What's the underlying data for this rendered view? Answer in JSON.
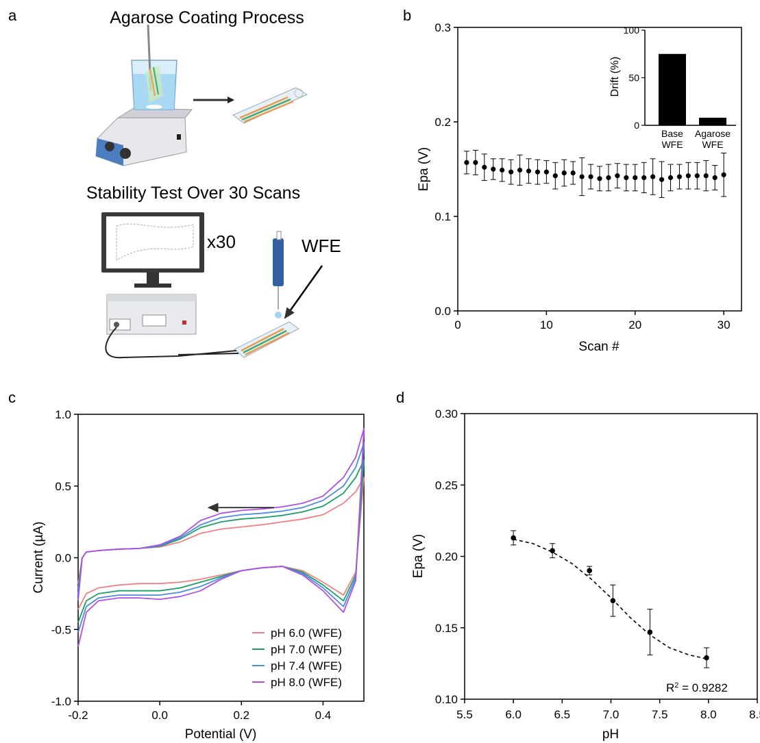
{
  "panels": {
    "a": "a",
    "b": "b",
    "c": "c",
    "d": "d"
  },
  "illustration": {
    "title_top": "Agarose Coating Process",
    "title_bottom": "Stability Test Over 30 Scans",
    "repeat_label": "x30",
    "electrode_label": "WFE"
  },
  "chart_data": [
    {
      "panel": "b",
      "type": "scatter",
      "title": "",
      "xlabel": "Scan #",
      "ylabel": "Epa (V)",
      "xlim": [
        0,
        32
      ],
      "ylim": [
        0.0,
        0.3
      ],
      "xticks": [
        0,
        10,
        20,
        30
      ],
      "yticks": [
        0.0,
        0.1,
        0.2,
        0.3
      ],
      "x": [
        1,
        2,
        3,
        4,
        5,
        6,
        7,
        8,
        9,
        10,
        11,
        12,
        13,
        14,
        15,
        16,
        17,
        18,
        19,
        20,
        21,
        22,
        23,
        24,
        25,
        26,
        27,
        28,
        29,
        30
      ],
      "y": [
        0.157,
        0.157,
        0.152,
        0.15,
        0.149,
        0.147,
        0.149,
        0.148,
        0.147,
        0.147,
        0.143,
        0.146,
        0.146,
        0.142,
        0.142,
        0.14,
        0.141,
        0.143,
        0.141,
        0.141,
        0.141,
        0.142,
        0.139,
        0.141,
        0.142,
        0.143,
        0.143,
        0.143,
        0.141,
        0.144
      ],
      "yerr": [
        0.012,
        0.013,
        0.014,
        0.011,
        0.012,
        0.013,
        0.016,
        0.013,
        0.013,
        0.012,
        0.014,
        0.014,
        0.012,
        0.02,
        0.013,
        0.013,
        0.014,
        0.013,
        0.014,
        0.014,
        0.016,
        0.019,
        0.019,
        0.014,
        0.013,
        0.014,
        0.014,
        0.016,
        0.013,
        0.023
      ],
      "grid": false,
      "inset": {
        "type": "bar",
        "ylabel": "Drift (%)",
        "ylim": [
          0,
          100
        ],
        "yticks": [
          0,
          50,
          100
        ],
        "categories": [
          [
            "Base",
            "WFE"
          ],
          [
            "Agarose",
            "WFE"
          ]
        ],
        "values": [
          75,
          8
        ]
      }
    },
    {
      "panel": "c",
      "type": "line",
      "title": "",
      "xlabel": "Potential (V)",
      "ylabel": "Current (µA)",
      "xlim": [
        -0.2,
        0.5
      ],
      "ylim": [
        -1.0,
        1.0
      ],
      "xticks": [
        -0.2,
        0.0,
        0.2,
        0.4
      ],
      "yticks": [
        -1.0,
        -0.5,
        0.0,
        0.5,
        1.0
      ],
      "grid": false,
      "legend_position": "bottom-right",
      "series": [
        {
          "name": "pH 6.0 (WFE)",
          "color": "#f08080",
          "forward_x": [
            -0.2,
            -0.19,
            -0.18,
            -0.15,
            -0.1,
            -0.05,
            0,
            0.05,
            0.1,
            0.15,
            0.2,
            0.25,
            0.3,
            0.35,
            0.4,
            0.45,
            0.48,
            0.5
          ],
          "forward_y": [
            -0.18,
            0.0,
            0.04,
            0.05,
            0.06,
            0.065,
            0.075,
            0.11,
            0.17,
            0.2,
            0.215,
            0.23,
            0.25,
            0.27,
            0.3,
            0.38,
            0.46,
            0.56
          ],
          "reverse_x": [
            0.5,
            0.48,
            0.45,
            0.4,
            0.35,
            0.3,
            0.25,
            0.2,
            0.15,
            0.1,
            0.05,
            0,
            -0.05,
            -0.1,
            -0.15,
            -0.18,
            -0.2
          ],
          "reverse_y": [
            0.56,
            -0.1,
            -0.26,
            -0.17,
            -0.09,
            -0.06,
            -0.07,
            -0.09,
            -0.12,
            -0.15,
            -0.17,
            -0.18,
            -0.18,
            -0.19,
            -0.21,
            -0.25,
            -0.36
          ]
        },
        {
          "name": "pH 7.0 (WFE)",
          "color": "#1aa064",
          "forward_x": [
            -0.2,
            -0.19,
            -0.18,
            -0.15,
            -0.1,
            -0.05,
            0,
            0.05,
            0.1,
            0.15,
            0.2,
            0.25,
            0.3,
            0.35,
            0.4,
            0.45,
            0.48,
            0.5
          ],
          "forward_y": [
            -0.22,
            0.0,
            0.04,
            0.05,
            0.06,
            0.065,
            0.08,
            0.13,
            0.21,
            0.25,
            0.27,
            0.28,
            0.295,
            0.32,
            0.36,
            0.45,
            0.56,
            0.68
          ],
          "reverse_x": [
            0.5,
            0.48,
            0.45,
            0.4,
            0.35,
            0.3,
            0.25,
            0.2,
            0.15,
            0.1,
            0.05,
            0,
            -0.05,
            -0.1,
            -0.15,
            -0.18,
            -0.2
          ],
          "reverse_y": [
            0.68,
            -0.12,
            -0.3,
            -0.19,
            -0.1,
            -0.06,
            -0.07,
            -0.09,
            -0.13,
            -0.17,
            -0.21,
            -0.23,
            -0.23,
            -0.23,
            -0.25,
            -0.3,
            -0.45
          ]
        },
        {
          "name": "pH 7.4 (WFE)",
          "color": "#4a8ae8",
          "forward_x": [
            -0.2,
            -0.19,
            -0.18,
            -0.15,
            -0.1,
            -0.05,
            0,
            0.05,
            0.1,
            0.15,
            0.2,
            0.25,
            0.3,
            0.35,
            0.4,
            0.45,
            0.48,
            0.5
          ],
          "forward_y": [
            -0.26,
            0.0,
            0.04,
            0.05,
            0.06,
            0.065,
            0.085,
            0.14,
            0.23,
            0.28,
            0.3,
            0.31,
            0.325,
            0.35,
            0.4,
            0.5,
            0.63,
            0.8
          ],
          "reverse_x": [
            0.5,
            0.48,
            0.45,
            0.4,
            0.35,
            0.3,
            0.25,
            0.2,
            0.15,
            0.1,
            0.05,
            0,
            -0.05,
            -0.1,
            -0.15,
            -0.18,
            -0.2
          ],
          "reverse_y": [
            0.8,
            -0.14,
            -0.34,
            -0.21,
            -0.11,
            -0.06,
            -0.07,
            -0.09,
            -0.14,
            -0.2,
            -0.24,
            -0.26,
            -0.26,
            -0.26,
            -0.28,
            -0.34,
            -0.52
          ]
        },
        {
          "name": "pH 8.0 (WFE)",
          "color": "#b04ee8",
          "forward_x": [
            -0.2,
            -0.19,
            -0.18,
            -0.15,
            -0.1,
            -0.05,
            0,
            0.05,
            0.1,
            0.15,
            0.2,
            0.25,
            0.3,
            0.35,
            0.4,
            0.45,
            0.48,
            0.5
          ],
          "forward_y": [
            -0.3,
            0.0,
            0.04,
            0.05,
            0.06,
            0.065,
            0.09,
            0.15,
            0.26,
            0.31,
            0.33,
            0.34,
            0.355,
            0.38,
            0.43,
            0.56,
            0.7,
            0.9
          ],
          "reverse_x": [
            0.5,
            0.48,
            0.45,
            0.4,
            0.35,
            0.3,
            0.25,
            0.2,
            0.15,
            0.1,
            0.05,
            0,
            -0.05,
            -0.1,
            -0.15,
            -0.18,
            -0.2
          ],
          "reverse_y": [
            0.9,
            -0.16,
            -0.38,
            -0.23,
            -0.12,
            -0.06,
            -0.07,
            -0.09,
            -0.15,
            -0.23,
            -0.27,
            -0.29,
            -0.28,
            -0.28,
            -0.3,
            -0.38,
            -0.62
          ]
        }
      ],
      "arrow": {
        "from": [
          0.28,
          0.34
        ],
        "to": [
          0.12,
          0.34
        ]
      }
    },
    {
      "panel": "d",
      "type": "scatter",
      "title": "",
      "xlabel": "pH",
      "ylabel": "Epa (V)",
      "xlim": [
        5.5,
        8.5
      ],
      "ylim": [
        0.1,
        0.3
      ],
      "xticks": [
        5.5,
        6.0,
        6.5,
        7.0,
        7.5,
        8.0,
        8.5
      ],
      "yticks": [
        0.1,
        0.15,
        0.2,
        0.25,
        0.3
      ],
      "x": [
        6.0,
        6.4,
        6.78,
        7.02,
        7.4,
        7.98
      ],
      "y": [
        0.213,
        0.204,
        0.19,
        0.169,
        0.147,
        0.129
      ],
      "yerr": [
        0.005,
        0.005,
        0.003,
        0.011,
        0.016,
        0.007
      ],
      "fit_curve": {
        "x": [
          6.0,
          6.2,
          6.4,
          6.6,
          6.8,
          7.0,
          7.2,
          7.4,
          7.6,
          7.8,
          8.0
        ],
        "y": [
          0.212,
          0.209,
          0.203,
          0.195,
          0.184,
          0.171,
          0.157,
          0.145,
          0.136,
          0.131,
          0.128
        ]
      },
      "annotation_r2": "= 0.9282",
      "grid": false
    }
  ]
}
